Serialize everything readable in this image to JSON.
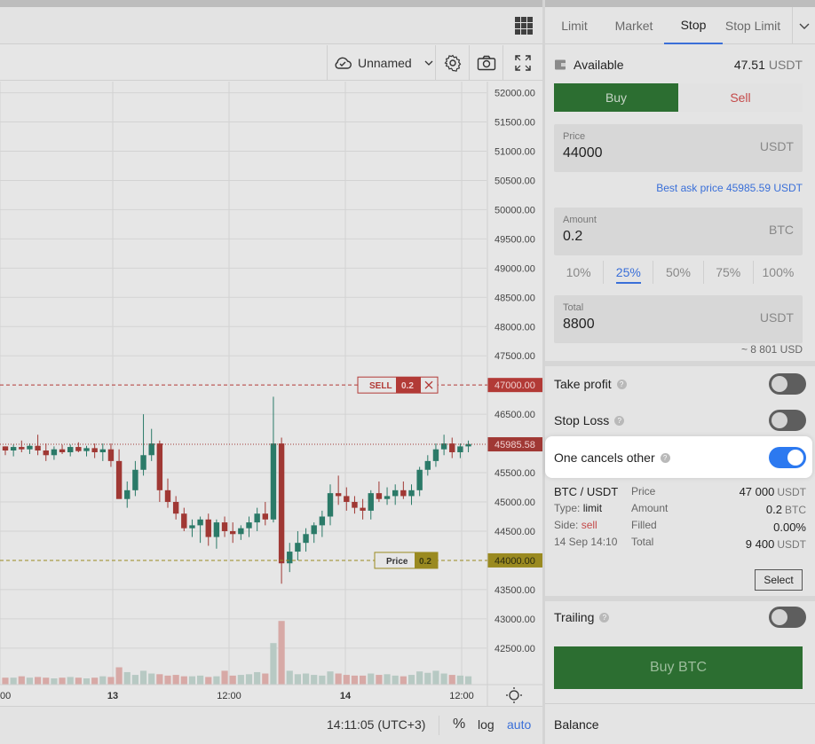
{
  "chart": {
    "layout_name": "Unnamed",
    "price_axis": [
      "52000.00",
      "51500.00",
      "51000.00",
      "50500.00",
      "50000.00",
      "49500.00",
      "49000.00",
      "48500.00",
      "48000.00",
      "47500.00",
      "47000.00",
      "46500.00",
      "45985.58",
      "45500.00",
      "45000.00",
      "44500.00",
      "44000.00",
      "43500.00",
      "43000.00",
      "42500.00"
    ],
    "time_axis": [
      ":00",
      "13",
      "12:00",
      "14",
      "12:00"
    ],
    "sell_line": {
      "label": "SELL",
      "qty": "0.2",
      "price": "47000.00"
    },
    "price_line": {
      "label": "Price",
      "qty": "0.2",
      "price": "44000.00"
    },
    "last_price": "45985.58",
    "footer": {
      "time": "14:11:05 (UTC+3)",
      "percent": "%",
      "log": "log",
      "auto": "auto"
    },
    "colors": {
      "up": "#2b7a68",
      "down": "#a03834",
      "sell": "#b23a36",
      "price": "#9a8a20",
      "auto": "#3a6fd8"
    }
  },
  "chart_data": {
    "type": "candlestick",
    "ylim": [
      42300,
      52100
    ],
    "candles": [
      [
        45950,
        45950,
        45800,
        45880
      ],
      [
        45880,
        45980,
        45780,
        45940
      ],
      [
        45940,
        46050,
        45850,
        45900
      ],
      [
        45900,
        46000,
        45820,
        45960
      ],
      [
        45960,
        46150,
        45800,
        45880
      ],
      [
        45880,
        46000,
        45700,
        45800
      ],
      [
        45800,
        45950,
        45720,
        45900
      ],
      [
        45900,
        45980,
        45820,
        45850
      ],
      [
        45850,
        45980,
        45780,
        45940
      ],
      [
        45940,
        46020,
        45850,
        45870
      ],
      [
        45870,
        45960,
        45780,
        45920
      ],
      [
        45920,
        46000,
        45750,
        45850
      ],
      [
        45850,
        46000,
        45700,
        45900
      ],
      [
        45900,
        46000,
        45600,
        45700
      ],
      [
        45700,
        45900,
        45100,
        45050
      ],
      [
        45050,
        45350,
        44900,
        45200
      ],
      [
        45200,
        45700,
        45100,
        45550
      ],
      [
        45550,
        46500,
        45450,
        45800
      ],
      [
        45800,
        46250,
        45700,
        46000
      ],
      [
        46000,
        46050,
        45000,
        45200
      ],
      [
        45200,
        45400,
        44900,
        45000
      ],
      [
        45000,
        45100,
        44700,
        44800
      ],
      [
        44800,
        44900,
        44500,
        44550
      ],
      [
        44550,
        44700,
        44400,
        44600
      ],
      [
        44600,
        44750,
        44300,
        44700
      ],
      [
        44700,
        44800,
        44250,
        44400
      ],
      [
        44400,
        44700,
        44200,
        44650
      ],
      [
        44650,
        44750,
        44400,
        44500
      ],
      [
        44500,
        44650,
        44300,
        44450
      ],
      [
        44450,
        44600,
        44350,
        44550
      ],
      [
        44550,
        44750,
        44400,
        44650
      ],
      [
        44650,
        44900,
        44500,
        44800
      ],
      [
        44800,
        45000,
        44600,
        44700
      ],
      [
        44700,
        46800,
        44650,
        46000
      ],
      [
        46000,
        46100,
        43600,
        43950
      ],
      [
        43950,
        44300,
        43800,
        44150
      ],
      [
        44150,
        44500,
        44000,
        44300
      ],
      [
        44300,
        44550,
        44150,
        44450
      ],
      [
        44450,
        44650,
        44300,
        44600
      ],
      [
        44600,
        44850,
        44400,
        44750
      ],
      [
        44750,
        45300,
        44600,
        45150
      ],
      [
        45150,
        45450,
        44950,
        45100
      ],
      [
        45100,
        45250,
        44850,
        45000
      ],
      [
        45000,
        45100,
        44800,
        44900
      ],
      [
        44900,
        45050,
        44700,
        44850
      ],
      [
        44850,
        45200,
        44700,
        45150
      ],
      [
        45150,
        45350,
        45000,
        45050
      ],
      [
        45050,
        45250,
        44950,
        45100
      ],
      [
        45100,
        45300,
        44950,
        45200
      ],
      [
        45200,
        45350,
        45050,
        45100
      ],
      [
        45100,
        45300,
        44950,
        45200
      ],
      [
        45200,
        45600,
        45100,
        45550
      ],
      [
        45550,
        45800,
        45450,
        45700
      ],
      [
        45700,
        46000,
        45600,
        45900
      ],
      [
        45900,
        46150,
        45800,
        46000
      ],
      [
        46000,
        46100,
        45750,
        45850
      ],
      [
        45850,
        46000,
        45750,
        45950
      ],
      [
        45950,
        46050,
        45850,
        45990
      ]
    ],
    "volume": [
      0.1,
      0.1,
      0.12,
      0.1,
      0.11,
      0.1,
      0.09,
      0.1,
      0.11,
      0.1,
      0.09,
      0.1,
      0.12,
      0.11,
      0.25,
      0.18,
      0.14,
      0.2,
      0.16,
      0.15,
      0.13,
      0.14,
      0.12,
      0.12,
      0.13,
      0.11,
      0.12,
      0.2,
      0.13,
      0.14,
      0.15,
      0.18,
      0.16,
      0.6,
      0.92,
      0.2,
      0.15,
      0.16,
      0.14,
      0.13,
      0.19,
      0.16,
      0.14,
      0.13,
      0.13,
      0.16,
      0.14,
      0.15,
      0.13,
      0.12,
      0.14,
      0.19,
      0.17,
      0.2,
      0.16,
      0.14,
      0.13,
      0.12
    ]
  },
  "panel": {
    "tabs": [
      "Limit",
      "Market",
      "Stop",
      "Stop Limit"
    ],
    "active_tab": "Stop",
    "available": {
      "label": "Available",
      "value": "47.51",
      "unit": "USDT"
    },
    "buy_label": "Buy",
    "sell_label": "Sell",
    "price": {
      "label": "Price",
      "value": "44000",
      "unit": "USDT"
    },
    "best_ask": "Best ask price 45985.59 USDT",
    "amount": {
      "label": "Amount",
      "value": "0.2",
      "unit": "BTC"
    },
    "percents": [
      "10%",
      "25%",
      "50%",
      "75%",
      "100%"
    ],
    "selected_percent": "25%",
    "total": {
      "label": "Total",
      "value": "8800",
      "unit": "USDT"
    },
    "approx": "~ 8 801 USD",
    "take_profit": {
      "label": "Take profit",
      "on": false
    },
    "stop_loss": {
      "label": "Stop Loss",
      "on": false
    },
    "oco": {
      "label": "One cancels other",
      "on": true
    },
    "order": {
      "pair": "BTC / USDT",
      "type_label": "Type:",
      "type_value": "limit",
      "side_label": "Side:",
      "side_value": "sell",
      "date": "14 Sep 14:10",
      "price_label": "Price",
      "price_value": "47 000",
      "price_unit": "USDT",
      "amount_label": "Amount",
      "amount_value": "0.2",
      "amount_unit": "BTC",
      "filled_label": "Filled",
      "filled_value": "0.00%",
      "total_label": "Total",
      "total_value": "9 400",
      "total_unit": "USDT"
    },
    "select_label": "Select",
    "trailing": {
      "label": "Trailing",
      "on": false
    },
    "buy_btc_label": "Buy BTC",
    "balance_label": "Balance",
    "help_glyph": "?"
  }
}
